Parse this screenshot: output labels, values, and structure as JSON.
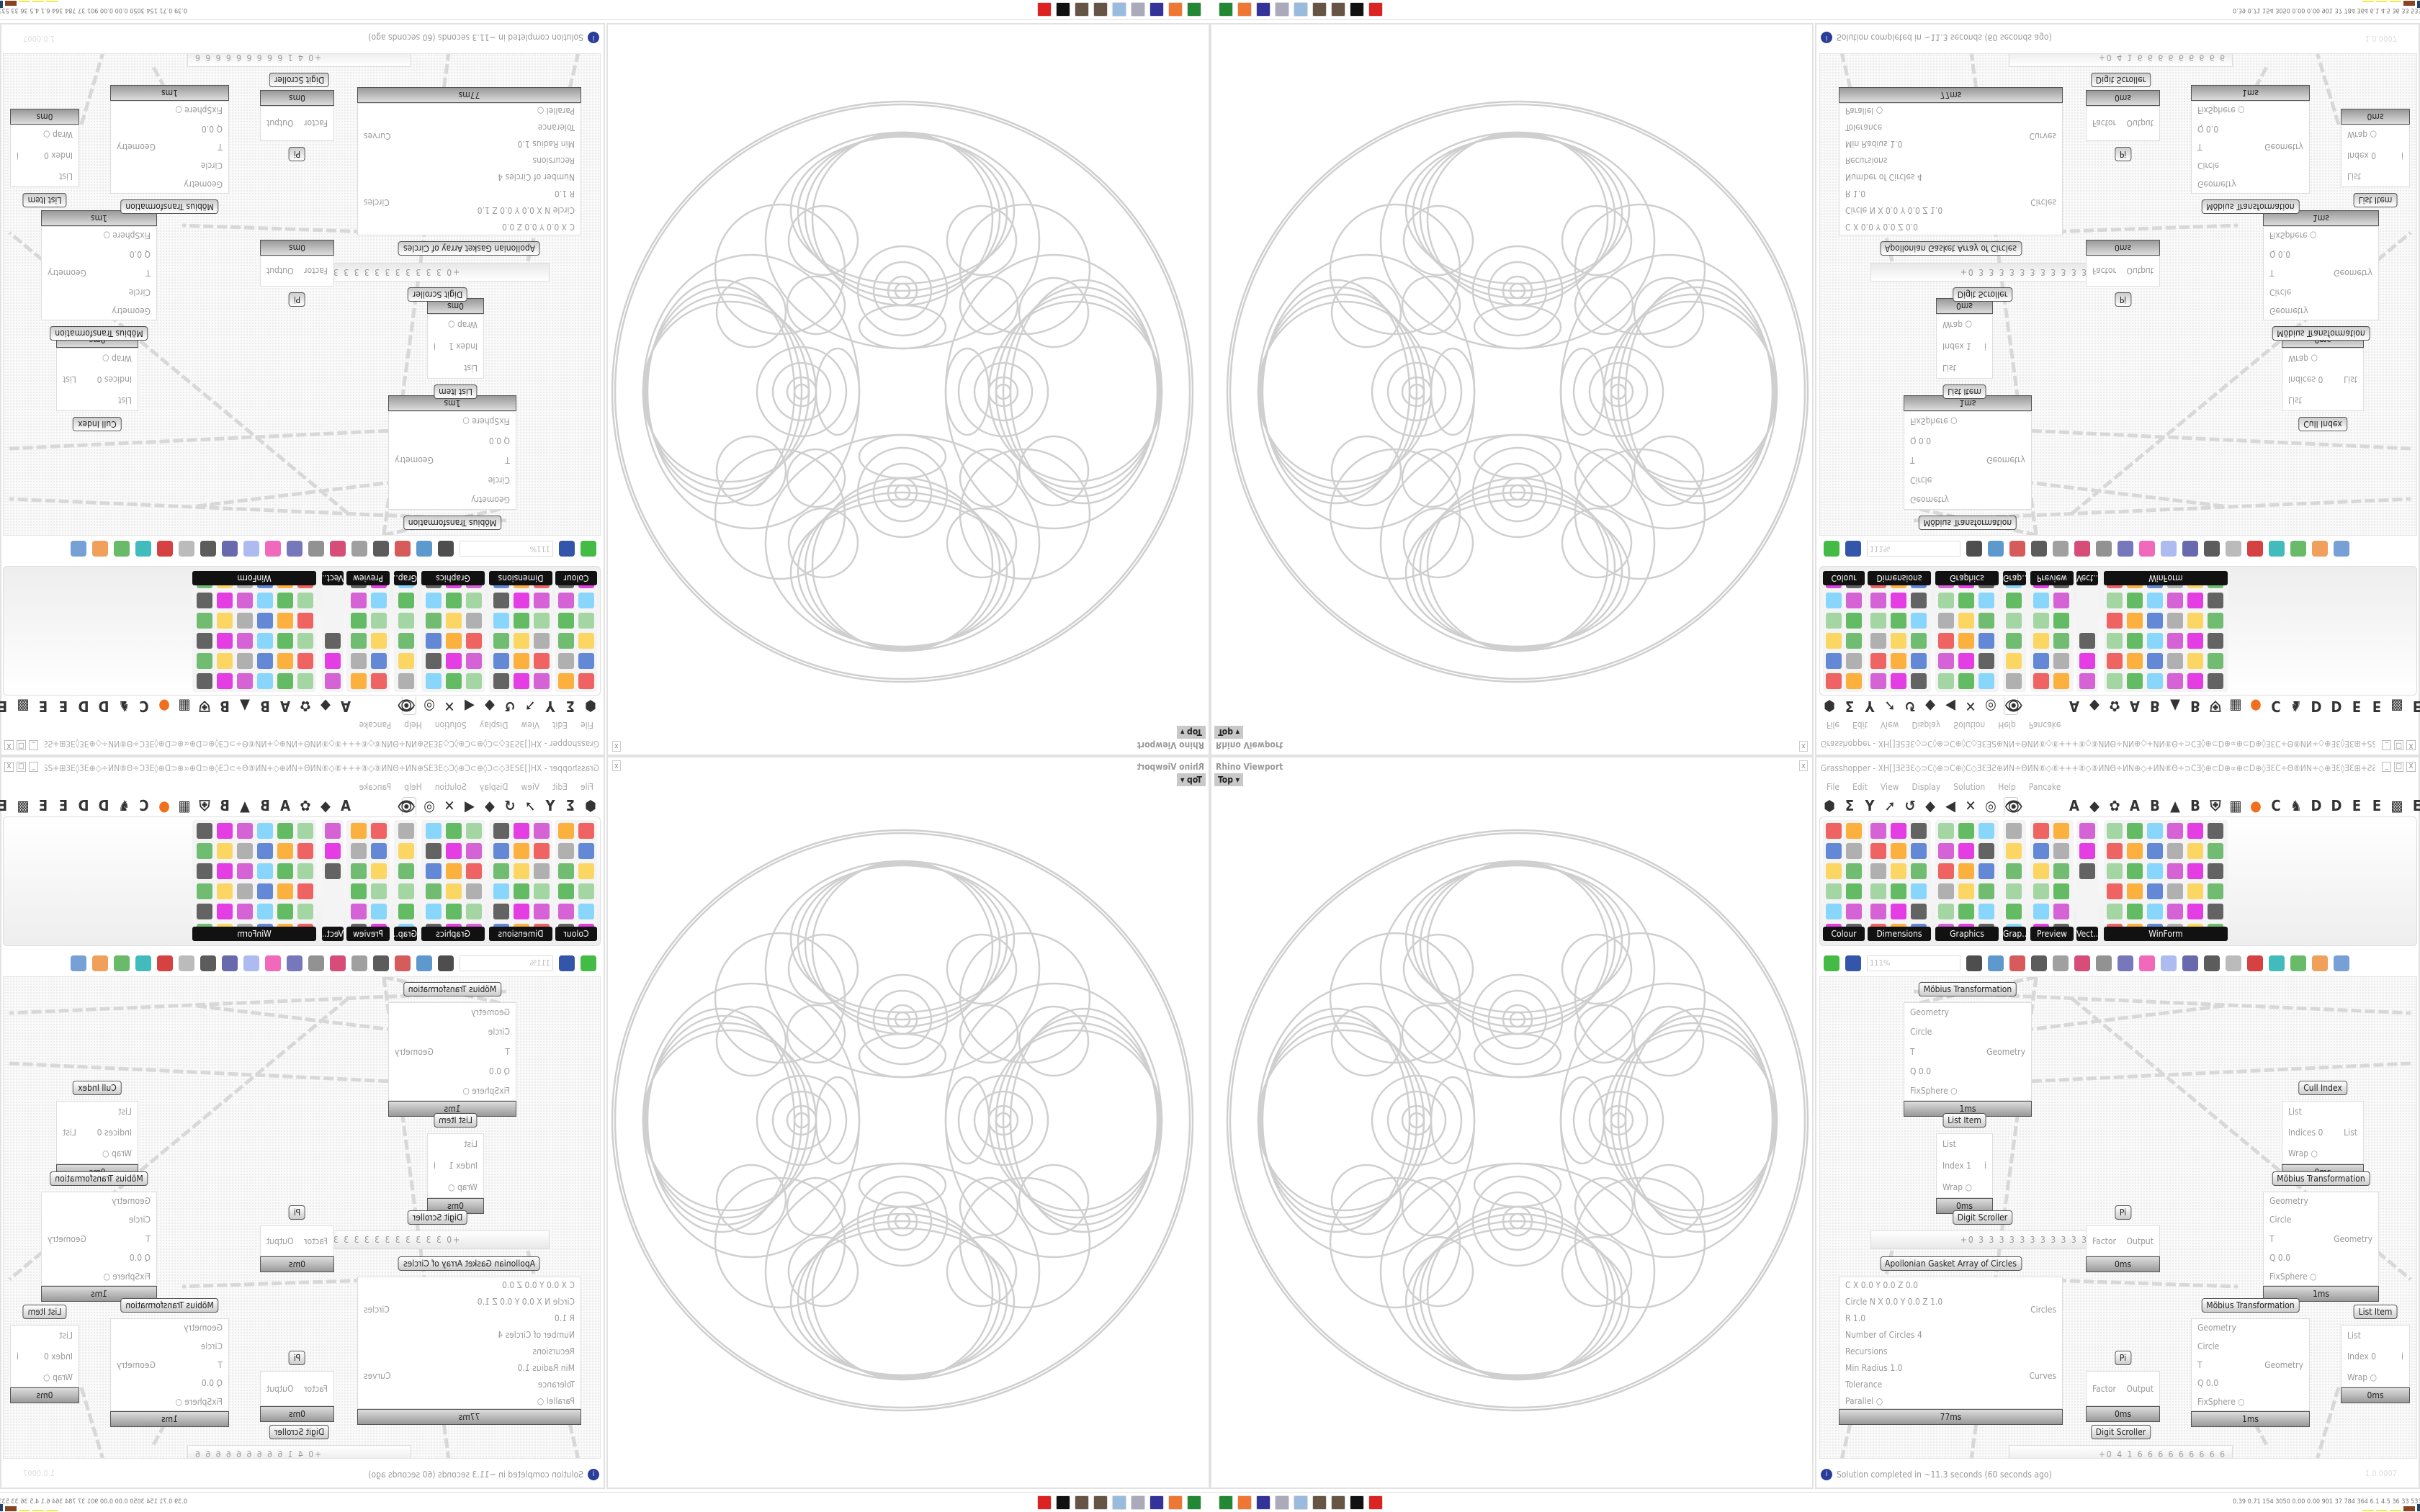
{
  "viewport": {
    "title": "Rhino Viewport",
    "close": "x",
    "view_tab": "Top ▾"
  },
  "grasshopper": {
    "title": "Grasshopper - XH[]ƎƧƎƐ◇⊃C◊⊕⊃C⊕◊C◇ƎƐƎƧ⊕ИN÷ΘИN⑧◇⑧+++⑧◇⑧ИNΘ÷ИN⊕◇+ИN⑧Θ÷⊃CƎ◊⊕⊂D⊕∝⊕⊂D⊕◊ƎƐC÷Θ⑧ИN÷◇⊕ƎƐ◊ƎƐ⊞+ƧƧ÷⊞ƎƐ◊ƎƐ⊕◇+◊⊕⊃CƎƐ⊕+÷⊃C...",
    "window_buttons": [
      "_",
      "□",
      "X"
    ],
    "menu": [
      "File",
      "Edit",
      "View",
      "Display",
      "Solution",
      "Help",
      "Pancake"
    ],
    "tabs": [
      "⬢",
      "Σ",
      "Y",
      "➚",
      "↺",
      "◆",
      "◀",
      "✕",
      "◎",
      "👁",
      "A",
      "◆",
      "✿",
      "A",
      "B",
      "▲",
      "B",
      "⛨",
      "▦",
      "●",
      "C",
      "♞",
      "D",
      "D",
      "E",
      "E",
      "▩",
      "E"
    ],
    "palette_groups": [
      "Colour",
      "Dimensions",
      "Graphics",
      "Grap..",
      "Preview",
      "Vect..",
      "WinForm"
    ],
    "zoom_level": "111%",
    "status": "Solution completed in ~11.3 seconds (60 seconds ago)",
    "version": "1.0.0007"
  },
  "nodes": [
    {
      "title": "Möbius Transformation",
      "inputs": [
        "Geometry",
        "Circle",
        "T",
        "Q 0.0",
        "FixSphere ○"
      ],
      "outputs": [
        "Geometry"
      ],
      "time": "1ms"
    },
    {
      "title": "List Item",
      "inputs": [
        "List",
        "Index 1",
        "Wrap ○"
      ],
      "outputs": [
        "i"
      ],
      "time": "0ms"
    },
    {
      "title": "Cull Index",
      "inputs": [
        "List",
        "Indices 0",
        "Wrap ○"
      ],
      "outputs": [
        "List"
      ],
      "time": "0ms"
    },
    {
      "title": "Möbius Transformation",
      "inputs": [
        "Geometry",
        "Circle",
        "T",
        "Q 0.0",
        "FixSphere ○"
      ],
      "outputs": [
        "Geometry"
      ],
      "time": "1ms"
    },
    {
      "title": "Digit Scroller",
      "value": "+0 3 3 3 3 3 3 3 3 3 3 3"
    },
    {
      "title": "Pi",
      "inputs": [
        "Factor"
      ],
      "outputs": [
        "Output"
      ],
      "time": "0ms"
    },
    {
      "title": "Apollonian Gasket Array of Circles",
      "inputs": [
        "C X 0.0 Y 0.0 Z 0.0",
        "Circle N X 0.0 Y 0.0 Z 1.0",
        "R 1.0",
        "Number of Circles 4",
        "Recursions",
        "Min Radius 1.0",
        "Tolerance",
        "Parallel ○"
      ],
      "outputs": [
        "Circles",
        "Curves"
      ],
      "time": "77ms"
    },
    {
      "title": "Pi",
      "inputs": [
        "Factor"
      ],
      "outputs": [
        "Output"
      ],
      "time": "0ms"
    },
    {
      "title": "Möbius Transformation",
      "inputs": [
        "Geometry",
        "Circle",
        "T",
        "Q 0.0",
        "FixSphere ○"
      ],
      "outputs": [
        "Geometry"
      ],
      "time": "1ms"
    },
    {
      "title": "List Item",
      "inputs": [
        "List",
        "Index 0",
        "Wrap ○"
      ],
      "outputs": [
        "i"
      ],
      "time": "0ms"
    },
    {
      "title": "Digit Scroller",
      "value": "+0 4 1 6 6 6 6 6 6 6 6 6"
    }
  ],
  "taskbar": {
    "icons": [
      "app-icon",
      "firefox-icon",
      "save64-icon",
      "document-icon",
      "notepad-icon",
      "gear-icon",
      "gear-icon",
      "rhino-icon",
      "skull-icon"
    ],
    "stats": "0.39 0.71 154 3050 0.00 0.00 901  37  784  364  6.1  4.5  36  33  53387083"
  },
  "colors": {
    "accent": "#2a3d9a",
    "wire": "#d4d4d4",
    "node_bar": "#aaaaaa"
  }
}
